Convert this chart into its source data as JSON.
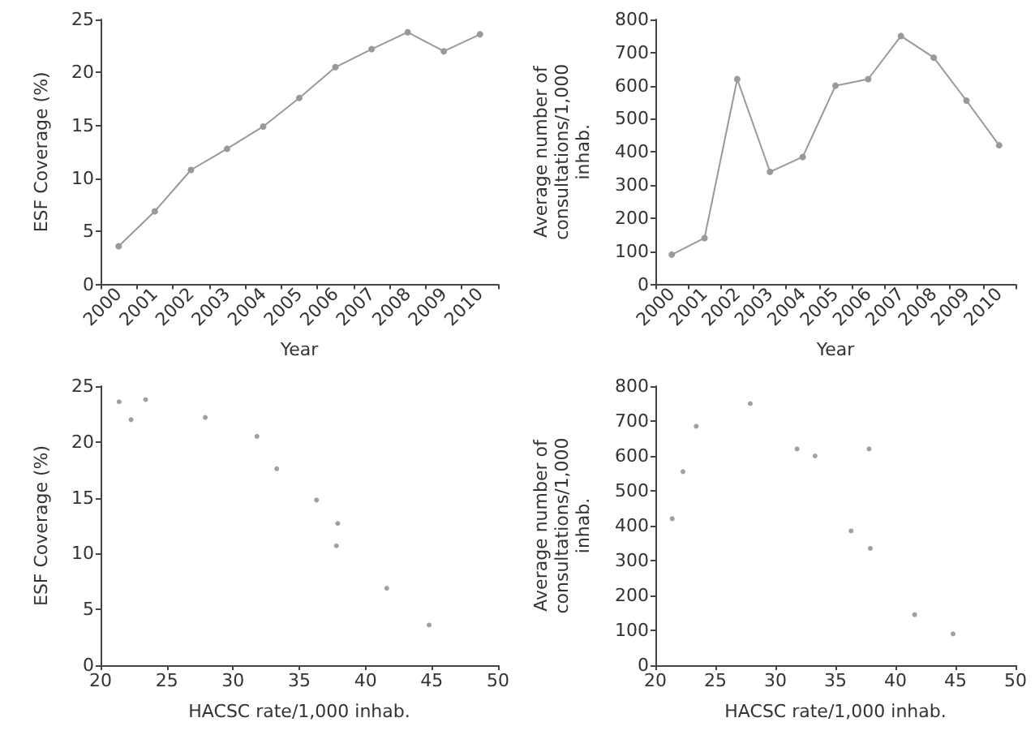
{
  "chart_data": [
    {
      "type": "line",
      "xlabel": "Year",
      "ylabel": "ESF Coverage (%)",
      "categories": [
        "2000",
        "2001",
        "2002",
        "2003",
        "2004",
        "2005",
        "2006",
        "2007",
        "2008",
        "2009",
        "2010"
      ],
      "ylim": [
        0,
        25
      ],
      "yticks": [
        0,
        5,
        10,
        15,
        20,
        25
      ],
      "grid": false,
      "marker": "circle",
      "series": [
        {
          "color": "#999999",
          "values": [
            3.6,
            6.9,
            10.8,
            12.8,
            14.9,
            17.6,
            20.5,
            22.2,
            23.8,
            22.0,
            23.6
          ]
        }
      ]
    },
    {
      "type": "line",
      "xlabel": "Year",
      "ylabel": "Average number of consultations/1,000 inhab.",
      "categories": [
        "2000",
        "2001",
        "2002",
        "2003",
        "2004",
        "2005",
        "2006",
        "2007",
        "2008",
        "2009",
        "2010"
      ],
      "ylim": [
        0,
        800
      ],
      "yticks": [
        0,
        100,
        200,
        300,
        400,
        500,
        600,
        700,
        800
      ],
      "grid": false,
      "marker": "circle",
      "series": [
        {
          "color": "#999999",
          "values": [
            90,
            140,
            620,
            340,
            385,
            600,
            620,
            750,
            685,
            555,
            420
          ]
        }
      ]
    },
    {
      "type": "scatter",
      "xlabel": "HACSC rate/1,000 inhab.",
      "ylabel": "ESF Coverage (%)",
      "xlim": [
        20,
        50
      ],
      "xticks": [
        20,
        25,
        30,
        35,
        40,
        45,
        50
      ],
      "ylim": [
        0,
        25
      ],
      "yticks": [
        0,
        5,
        10,
        15,
        20,
        25
      ],
      "grid": false,
      "marker": "circle",
      "series": [
        {
          "color": "#888888",
          "x": [
            44.8,
            41.6,
            37.8,
            37.9,
            36.3,
            33.3,
            31.8,
            27.9,
            23.4,
            22.3,
            21.4
          ],
          "values": [
            3.6,
            6.9,
            10.7,
            12.7,
            14.8,
            17.6,
            20.5,
            22.2,
            23.8,
            22.0,
            23.6
          ]
        }
      ]
    },
    {
      "type": "scatter",
      "xlabel": "HACSC rate/1,000 inhab.",
      "ylabel": "Average number of consultations/1,000 inhab.",
      "xlim": [
        20,
        50
      ],
      "xticks": [
        20,
        25,
        30,
        35,
        40,
        45,
        50
      ],
      "ylim": [
        0,
        800
      ],
      "yticks": [
        0,
        100,
        200,
        300,
        400,
        500,
        600,
        700,
        800
      ],
      "grid": false,
      "marker": "circle",
      "series": [
        {
          "color": "#888888",
          "x": [
            44.8,
            41.6,
            37.8,
            37.9,
            36.3,
            33.3,
            31.8,
            27.9,
            23.4,
            22.3,
            21.4
          ],
          "values": [
            90,
            145,
            620,
            335,
            385,
            600,
            620,
            750,
            685,
            555,
            420
          ]
        }
      ]
    }
  ]
}
